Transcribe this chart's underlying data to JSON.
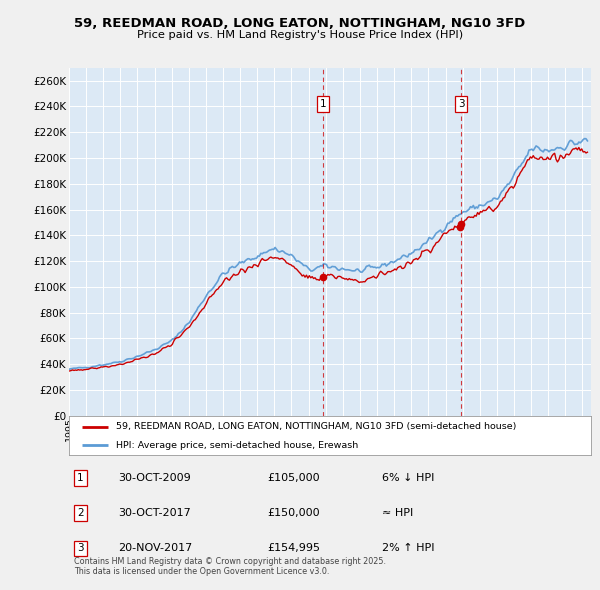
{
  "title": "59, REEDMAN ROAD, LONG EATON, NOTTINGHAM, NG10 3FD",
  "subtitle": "Price paid vs. HM Land Registry's House Price Index (HPI)",
  "fig_bg": "#f0f0f0",
  "plot_bg": "#dce9f5",
  "grid_color": "#ffffff",
  "yticks": [
    0,
    20000,
    40000,
    60000,
    80000,
    100000,
    120000,
    140000,
    160000,
    180000,
    200000,
    220000,
    240000,
    260000
  ],
  "ytick_labels": [
    "£0",
    "£20K",
    "£40K",
    "£60K",
    "£80K",
    "£100K",
    "£120K",
    "£140K",
    "£160K",
    "£180K",
    "£200K",
    "£220K",
    "£240K",
    "£260K"
  ],
  "xmin": 1995.0,
  "xmax": 2025.5,
  "ymin": 0,
  "ymax": 270000,
  "legend_red": "59, REEDMAN ROAD, LONG EATON, NOTTINGHAM, NG10 3FD (semi-detached house)",
  "legend_blue": "HPI: Average price, semi-detached house, Erewash",
  "transactions": [
    {
      "id": 1,
      "date": "30-OCT-2009",
      "price": "£105,000",
      "change": "6% ↓ HPI",
      "year": 2009.83
    },
    {
      "id": 2,
      "date": "30-OCT-2017",
      "price": "£150,000",
      "change": "≈ HPI",
      "year": 2017.83
    },
    {
      "id": 3,
      "date": "20-NOV-2017",
      "price": "£154,995",
      "change": "2% ↑ HPI",
      "year": 2017.92
    }
  ],
  "show_vline": [
    1,
    3
  ],
  "footer": "Contains HM Land Registry data © Crown copyright and database right 2025.\nThis data is licensed under the Open Government Licence v3.0.",
  "hpi_color": "#5b9bd5",
  "price_color": "#cc0000",
  "marker_color": "#cc0000"
}
